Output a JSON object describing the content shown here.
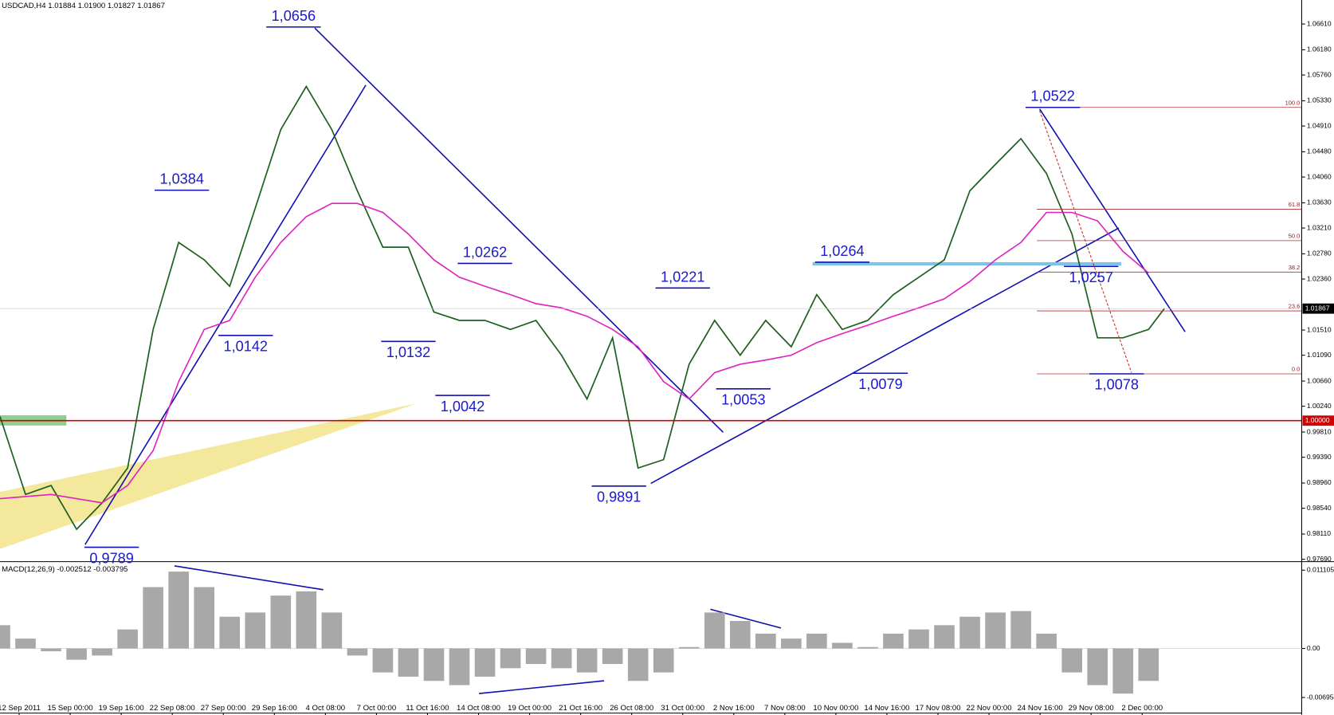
{
  "chart_data": [
    {
      "type": "line",
      "title": "USDCAD,H4  1.01884 1.01900 1.01827 1.01867",
      "xlim": [
        0,
        408
      ],
      "ylim": [
        0.9765,
        1.0701
      ],
      "xticks": [
        {
          "value": 6,
          "label": "12 Sep 2011"
        },
        {
          "value": 22,
          "label": "15 Sep 00:00"
        },
        {
          "value": 38,
          "label": "19 Sep 16:00"
        },
        {
          "value": 54,
          "label": "22 Sep 08:00"
        },
        {
          "value": 70,
          "label": "27 Sep 00:00"
        },
        {
          "value": 86,
          "label": "29 Sep 16:00"
        },
        {
          "value": 102,
          "label": "4 Oct 08:00"
        },
        {
          "value": 118,
          "label": "7 Oct 00:00"
        },
        {
          "value": 134,
          "label": "11 Oct 16:00"
        },
        {
          "value": 150,
          "label": "14 Oct 08:00"
        },
        {
          "value": 166,
          "label": "19 Oct 00:00"
        },
        {
          "value": 182,
          "label": "21 Oct 16:00"
        },
        {
          "value": 198,
          "label": "26 Oct 08:00"
        },
        {
          "value": 214,
          "label": "31 Oct 00:00"
        },
        {
          "value": 230,
          "label": "2 Nov 16:00"
        },
        {
          "value": 246,
          "label": "7 Nov 08:00"
        },
        {
          "value": 262,
          "label": "10 Nov 00:00"
        },
        {
          "value": 278,
          "label": "14 Nov 16:00"
        },
        {
          "value": 294,
          "label": "17 Nov 08:00"
        },
        {
          "value": 310,
          "label": "22 Nov 00:00"
        },
        {
          "value": 326,
          "label": "24 Nov 16:00"
        },
        {
          "value": 342,
          "label": "29 Nov 08:00"
        },
        {
          "value": 358,
          "label": "2 Dec 00:00"
        }
      ],
      "yticks": [
        {
          "value": 1.0661,
          "label": "1.06610"
        },
        {
          "value": 1.0618,
          "label": "1.06180"
        },
        {
          "value": 1.0576,
          "label": "1.05760"
        },
        {
          "value": 1.0533,
          "label": "1.05330"
        },
        {
          "value": 1.0491,
          "label": "1.04910"
        },
        {
          "value": 1.0448,
          "label": "1.04480"
        },
        {
          "value": 1.0406,
          "label": "1.04060"
        },
        {
          "value": 1.0363,
          "label": "1.03630"
        },
        {
          "value": 1.0321,
          "label": "1.03210"
        },
        {
          "value": 1.0278,
          "label": "1.02780"
        },
        {
          "value": 1.0236,
          "label": "1.02360"
        },
        {
          "value": 1.0151,
          "label": "1.01510"
        },
        {
          "value": 1.0109,
          "label": "1.01090"
        },
        {
          "value": 1.0066,
          "label": "1.00660"
        },
        {
          "value": 1.0024,
          "label": "1.00240"
        },
        {
          "value": 0.9981,
          "label": "0.99810"
        },
        {
          "value": 0.9939,
          "label": "0.99390"
        },
        {
          "value": 0.9896,
          "label": "0.98960"
        },
        {
          "value": 0.9854,
          "label": "0.98540"
        },
        {
          "value": 0.9811,
          "label": "0.98110"
        },
        {
          "value": 0.9769,
          "label": "0.97690"
        }
      ],
      "series": [
        {
          "color": "#1f5f1f",
          "x": [
            0,
            8,
            16,
            24,
            32,
            40,
            48,
            56,
            64,
            72,
            80,
            88,
            96,
            104,
            112,
            120,
            128,
            136,
            144,
            152,
            160,
            168,
            176,
            184,
            192,
            200,
            208,
            216,
            224,
            232,
            240,
            248,
            256,
            264,
            272,
            280,
            288,
            296,
            304,
            312,
            320,
            328,
            336,
            344,
            352,
            360,
            365
          ],
          "values": [
            1.0007,
            0.9877,
            0.9892,
            0.9819,
            0.9863,
            0.9921,
            1.0152,
            1.0297,
            1.0268,
            1.0224,
            1.0354,
            1.0485,
            1.0557,
            1.0485,
            1.0383,
            1.0289,
            1.0289,
            1.0181,
            1.0167,
            1.0167,
            1.0152,
            1.0167,
            1.0109,
            1.0036,
            1.0138,
            0.9921,
            0.9935,
            1.0094,
            1.0167,
            1.0109,
            1.0167,
            1.0123,
            1.021,
            1.0152,
            1.0167,
            1.021,
            1.0239,
            1.0268,
            1.0383,
            1.0427,
            1.047,
            1.0412,
            1.0311,
            1.0138,
            1.0138,
            1.0152,
            1.0187
          ]
        },
        {
          "color": "#e020c0",
          "x": [
            0,
            16,
            32,
            40,
            48,
            56,
            64,
            72,
            80,
            88,
            96,
            104,
            112,
            120,
            128,
            136,
            144,
            152,
            160,
            168,
            176,
            184,
            192,
            200,
            208,
            216,
            224,
            232,
            240,
            248,
            256,
            264,
            272,
            280,
            288,
            296,
            304,
            312,
            320,
            328,
            336,
            344,
            352,
            360
          ],
          "values": [
            0.987,
            0.9877,
            0.9863,
            0.9892,
            0.995,
            1.0065,
            1.0152,
            1.0167,
            1.0239,
            1.0297,
            1.034,
            1.0362,
            1.0362,
            1.0347,
            1.0311,
            1.0268,
            1.0239,
            1.0224,
            1.021,
            1.0195,
            1.0188,
            1.0174,
            1.0152,
            1.0123,
            1.0065,
            1.0036,
            1.008,
            1.0094,
            1.0101,
            1.0109,
            1.013,
            1.0145,
            1.0159,
            1.0174,
            1.0188,
            1.0203,
            1.0232,
            1.0268,
            1.0297,
            1.0347,
            1.0347,
            1.0333,
            1.0282,
            1.0246
          ]
        }
      ],
      "annotations": [
        {
          "text": "1,0656",
          "x": 92,
          "value": 1.0656,
          "side": "above"
        },
        {
          "text": "1,0384",
          "x": 57,
          "value": 1.0384,
          "side": "above"
        },
        {
          "text": "1,0142",
          "x": 77,
          "value": 1.0142,
          "side": "below"
        },
        {
          "text": "1,0132",
          "x": 128,
          "value": 1.0132,
          "side": "below"
        },
        {
          "text": "1,0262",
          "x": 152,
          "value": 1.0262,
          "side": "above"
        },
        {
          "text": "1,0042",
          "x": 145,
          "value": 1.0042,
          "side": "below"
        },
        {
          "text": "0,9891",
          "x": 194,
          "value": 0.9891,
          "side": "below"
        },
        {
          "text": "1,0221",
          "x": 214,
          "value": 1.0221,
          "side": "above"
        },
        {
          "text": "1,0053",
          "x": 233,
          "value": 1.0053,
          "side": "below"
        },
        {
          "text": "1,0264",
          "x": 264,
          "value": 1.0264,
          "side": "above"
        },
        {
          "text": "1,0079",
          "x": 276,
          "value": 1.0079,
          "side": "below"
        },
        {
          "text": "1,0522",
          "x": 330,
          "value": 1.0522,
          "side": "above"
        },
        {
          "text": "1,0257",
          "x": 342,
          "value": 1.0257,
          "side": "below"
        },
        {
          "text": "1,0078",
          "x": 350,
          "value": 1.0078,
          "side": "below"
        },
        {
          "text": "0,9789",
          "x": 35,
          "value": 0.9789,
          "side": "below"
        }
      ],
      "fib": {
        "from": 1.0078,
        "to": 1.0522,
        "start": 325,
        "levels": [
          {
            "value": 100,
            "label": "100.0"
          },
          {
            "value": 61.8,
            "label": "61.8"
          },
          {
            "value": 50,
            "label": "50.0"
          },
          {
            "value": 38.2,
            "label": "38.2"
          },
          {
            "value": 23.6,
            "label": "23.6"
          },
          {
            "value": 0,
            "label": "0.0"
          }
        ]
      },
      "hline": {
        "value": 1,
        "label": "1.00000",
        "color": "#d00000"
      },
      "last": {
        "value": 1.01867,
        "label": "1.01867"
      }
    },
    {
      "type": "bar",
      "title": "MACD(12,26,9) -0.002512 -0.003795",
      "ylim": [
        -0.00917,
        0.01207
      ],
      "yticks": [
        {
          "value": 0.011105,
          "label": "0.011105"
        },
        {
          "value": 0,
          "label": "0.00"
        },
        {
          "value": -0.006954,
          "label": "-0.006954"
        }
      ],
      "color": "#a8a8a8",
      "x": [
        0,
        8,
        16,
        24,
        32,
        40,
        48,
        56,
        64,
        72,
        80,
        88,
        96,
        104,
        112,
        120,
        128,
        136,
        144,
        152,
        160,
        168,
        176,
        184,
        192,
        200,
        208,
        216,
        224,
        232,
        240,
        248,
        256,
        264,
        272,
        280,
        288,
        296,
        304,
        312,
        320,
        328,
        336,
        344,
        352,
        360
      ],
      "values": [
        0.0033,
        0.0014,
        -0.0004,
        -0.0016,
        -0.001,
        0.0027,
        0.0087,
        0.0109,
        0.0087,
        0.0045,
        0.0051,
        0.0075,
        0.0081,
        0.0051,
        -0.001,
        -0.0034,
        -0.004,
        -0.0046,
        -0.0052,
        -0.004,
        -0.0028,
        -0.0022,
        -0.0028,
        -0.0034,
        -0.0022,
        -0.0046,
        -0.0034,
        0.0002,
        0.0051,
        0.0039,
        0.0021,
        0.0014,
        0.0021,
        0.0008,
        0.0002,
        0.0021,
        0.0027,
        0.0033,
        0.0045,
        0.0051,
        0.0053,
        0.0021,
        -0.0034,
        -0.0052,
        -0.0064,
        -0.0046
      ]
    }
  ]
}
